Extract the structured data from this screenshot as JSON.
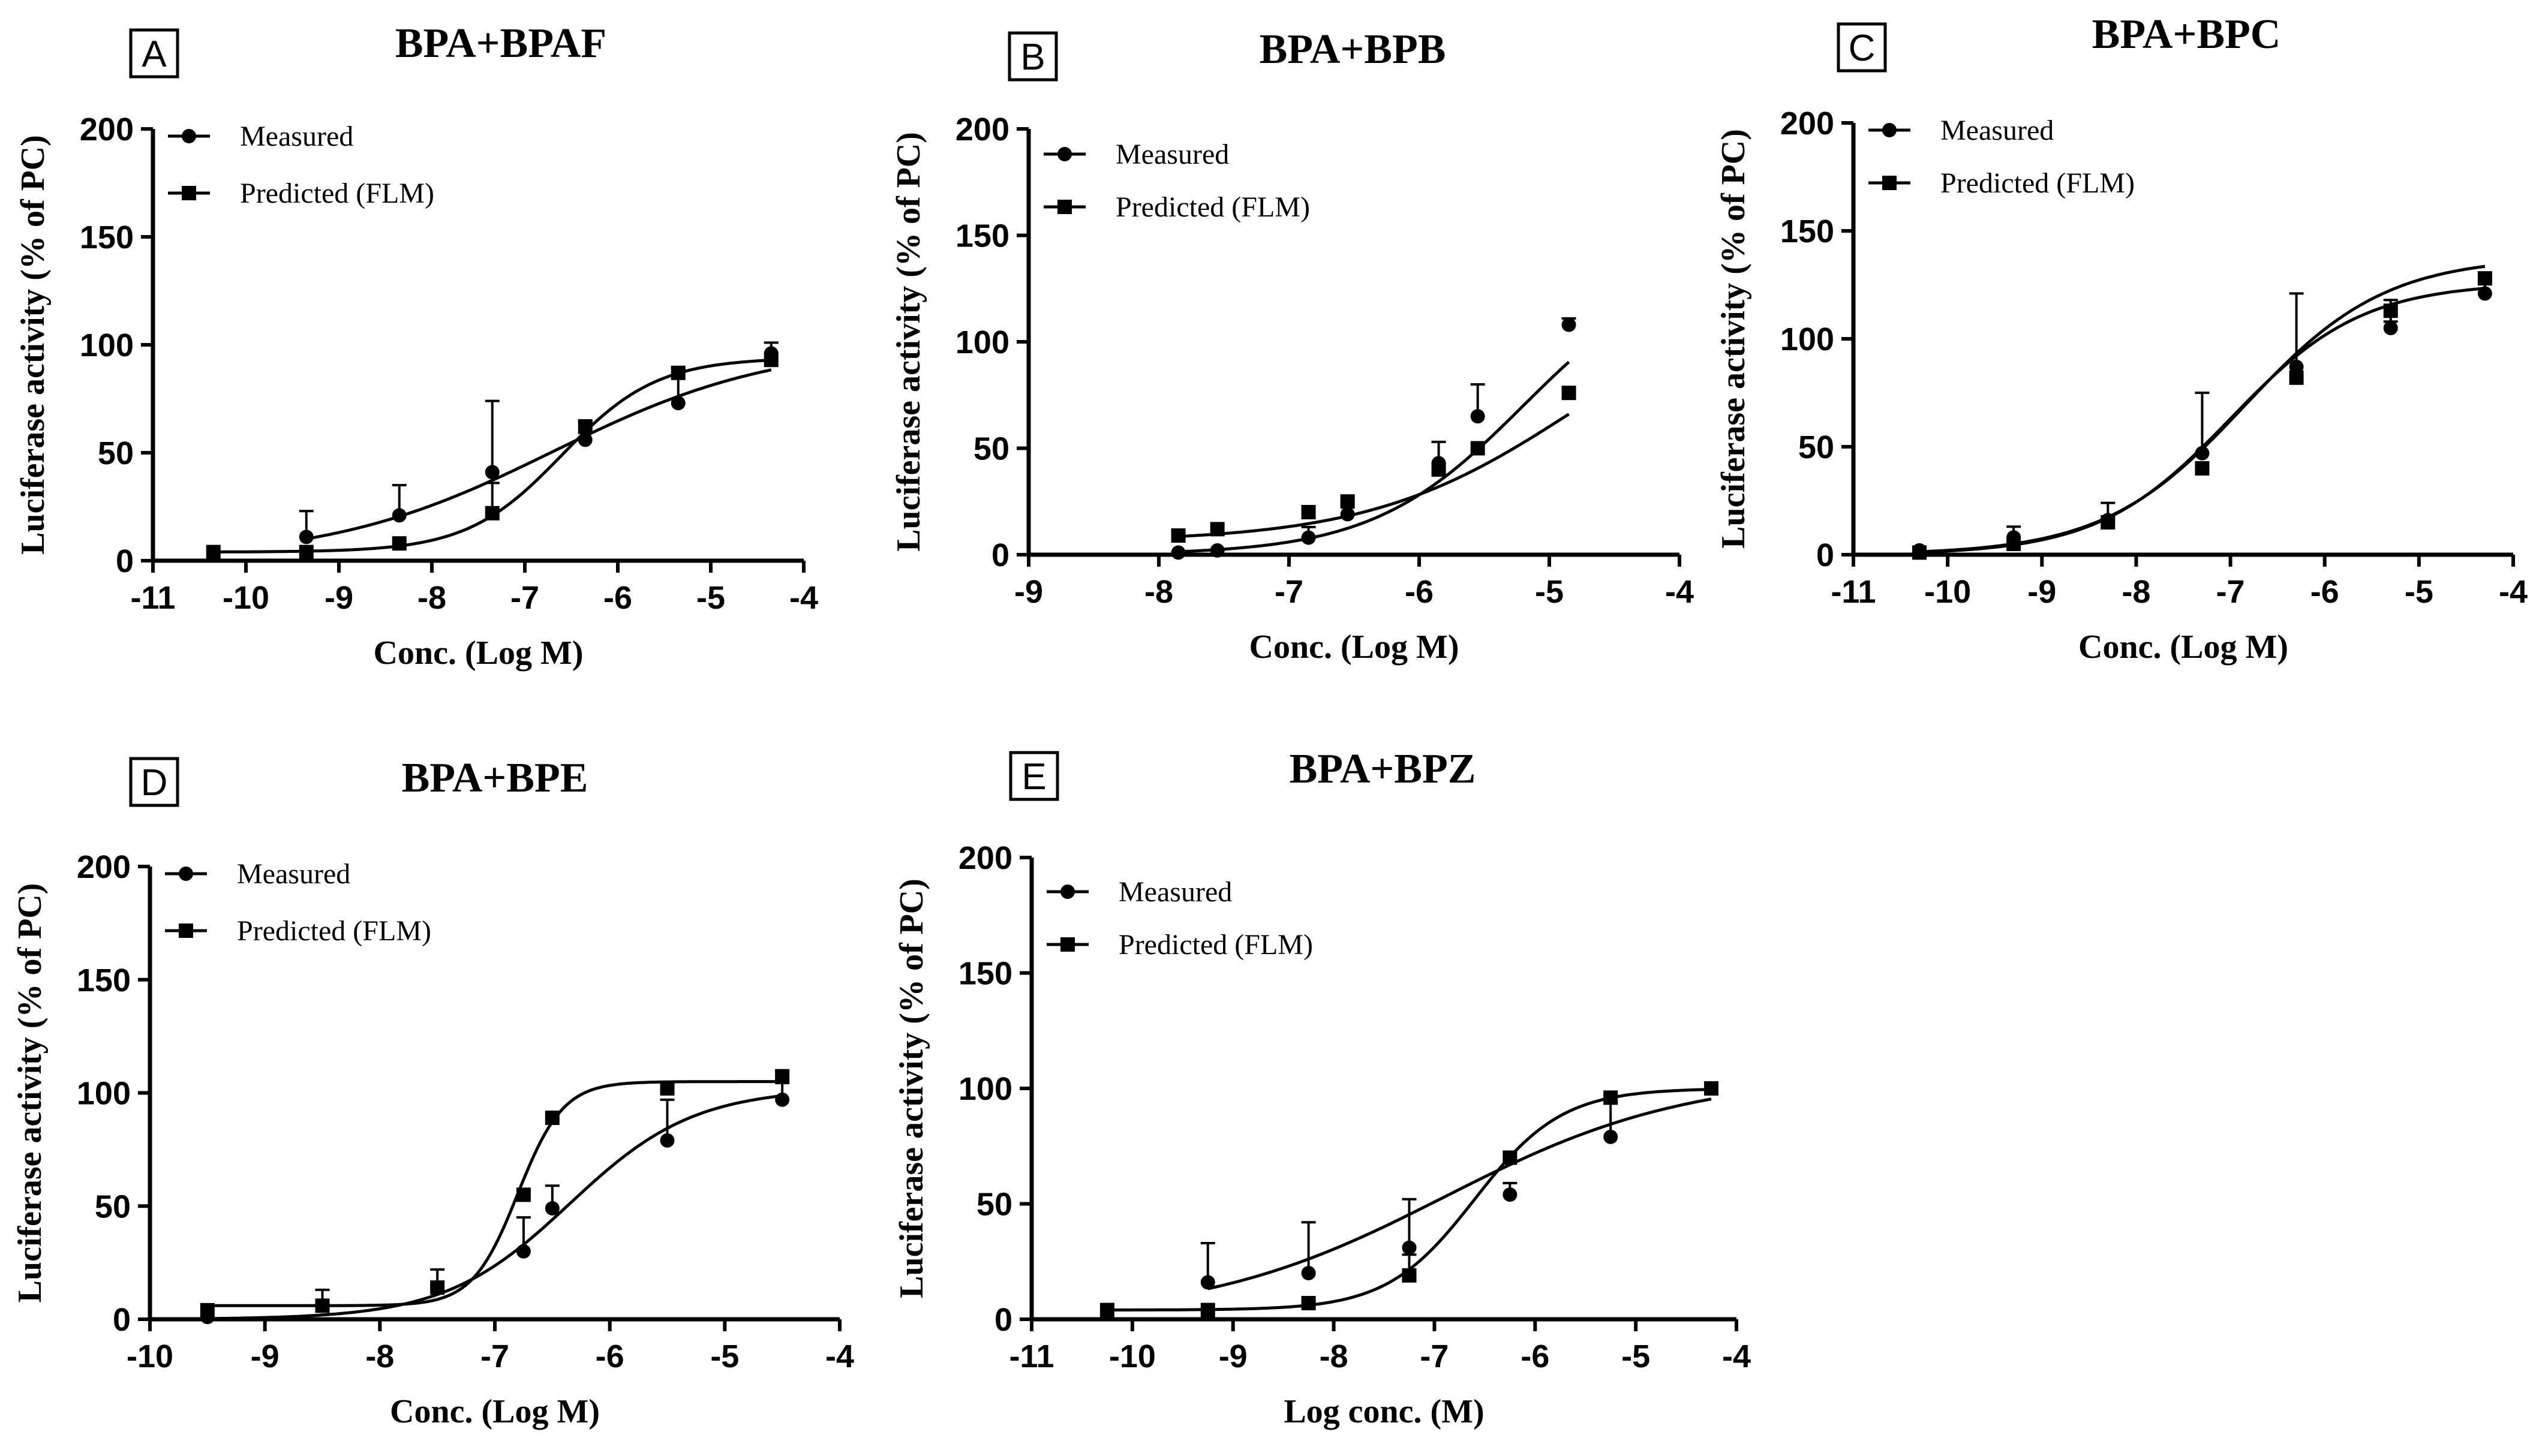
{
  "chart_data": [
    {
      "panel": "A",
      "type": "line",
      "title": "BPA+BPAF",
      "xlabel": "Conc. (Log M)",
      "ylabel": "Luciferase activity (% of PC)",
      "xlim": [
        -11,
        -4
      ],
      "ylim": [
        0,
        200
      ],
      "xticks": [
        -11,
        -10,
        -9,
        -8,
        -7,
        -6,
        -5,
        -4
      ],
      "yticks": [
        0,
        50,
        100,
        150,
        200
      ],
      "legend": "top-left",
      "grid": false,
      "series": [
        {
          "name": "Measured",
          "marker": "circle",
          "x": [
            -9.35,
            -8.35,
            -7.35,
            -6.35,
            -5.35,
            -4.35
          ],
          "y": [
            11,
            21,
            41,
            56,
            73,
            96
          ],
          "err": [
            12,
            14,
            33,
            9,
            16,
            5
          ],
          "fit": {
            "bottom": 0,
            "top": 101,
            "ec50": -6.7,
            "hill": 0.36
          }
        },
        {
          "name": "Predicted (FLM)",
          "marker": "square",
          "x": [
            -10.35,
            -9.35,
            -8.35,
            -7.35,
            -6.35,
            -5.35,
            -4.35
          ],
          "y": [
            4,
            4,
            8,
            22,
            62,
            87,
            93
          ],
          "err": [
            0,
            0,
            0,
            14,
            0,
            0,
            0
          ],
          "fit": {
            "bottom": 4,
            "top": 94,
            "ec50": -6.6,
            "hill": 0.85
          }
        }
      ]
    },
    {
      "panel": "B",
      "type": "line",
      "title": "BPA+BPB",
      "xlabel": "Conc. (Log M)",
      "ylabel": "Luciferase activity (% of PC)",
      "xlim": [
        -9,
        -4
      ],
      "ylim": [
        0,
        200
      ],
      "xticks": [
        -9,
        -8,
        -7,
        -6,
        -5,
        -4
      ],
      "yticks": [
        0,
        50,
        100,
        150,
        200
      ],
      "legend": "top-left",
      "grid": false,
      "series": [
        {
          "name": "Measured",
          "marker": "circle",
          "x": [
            -7.85,
            -7.55,
            -6.85,
            -6.55,
            -5.85,
            -5.55,
            -4.85
          ],
          "y": [
            1,
            2,
            8,
            19,
            43,
            65,
            108
          ],
          "err": [
            0,
            0,
            5,
            5,
            10,
            15,
            3
          ],
          "fit": {
            "bottom": 0,
            "top": 140,
            "ec50": -5.2,
            "hill": 0.75
          }
        },
        {
          "name": "Predicted (FLM)",
          "marker": "square",
          "x": [
            -7.85,
            -7.55,
            -6.85,
            -6.55,
            -5.85,
            -5.55,
            -4.85
          ],
          "y": [
            9,
            12,
            20,
            25,
            40,
            50,
            76
          ],
          "err": [
            0,
            0,
            0,
            0,
            0,
            0,
            0
          ],
          "fit": {
            "bottom": 6,
            "top": 130,
            "ec50": -4.8,
            "hill": 0.55
          }
        }
      ]
    },
    {
      "panel": "C",
      "type": "line",
      "title": "BPA+BPC",
      "xlabel": "Conc. (Log M)",
      "ylabel": "Luciferase activity (% of PC)",
      "xlim": [
        -11,
        -4
      ],
      "ylim": [
        0,
        200
      ],
      "xticks": [
        -11,
        -10,
        -9,
        -8,
        -7,
        -6,
        -5,
        -4
      ],
      "yticks": [
        0,
        50,
        100,
        150,
        200
      ],
      "legend": "top-left",
      "grid": false,
      "series": [
        {
          "name": "Measured",
          "marker": "circle",
          "x": [
            -10.3,
            -9.3,
            -8.3,
            -7.3,
            -6.3,
            -5.3,
            -4.3
          ],
          "y": [
            2,
            8,
            16,
            47,
            87,
            105,
            121
          ],
          "err": [
            1,
            5,
            8,
            28,
            34,
            13,
            6
          ],
          "fit": {
            "bottom": 0,
            "top": 126,
            "ec50": -7.0,
            "hill": 0.62
          }
        },
        {
          "name": "Predicted (FLM)",
          "marker": "square",
          "x": [
            -10.3,
            -9.3,
            -8.3,
            -7.3,
            -6.3,
            -5.3,
            -4.3
          ],
          "y": [
            1,
            5,
            15,
            40,
            82,
            113,
            128
          ],
          "err": [
            0,
            0,
            0,
            0,
            0,
            5,
            0
          ],
          "fit": {
            "bottom": 0,
            "top": 138,
            "ec50": -6.85,
            "hill": 0.58
          }
        }
      ]
    },
    {
      "panel": "D",
      "type": "line",
      "title": "BPA+BPE",
      "xlabel": "Conc. (Log M)",
      "ylabel": "Luciferase activity (% of PC)",
      "xlim": [
        -10,
        -4
      ],
      "ylim": [
        0,
        200
      ],
      "xticks": [
        -10,
        -9,
        -8,
        -7,
        -6,
        -5,
        -4
      ],
      "yticks": [
        0,
        50,
        100,
        150,
        200
      ],
      "legend": "top-left",
      "grid": false,
      "series": [
        {
          "name": "Measured",
          "marker": "circle",
          "x": [
            -9.5,
            -8.5,
            -7.5,
            -6.75,
            -6.5,
            -5.5,
            -4.5
          ],
          "y": [
            1,
            6,
            14,
            30,
            49,
            79,
            97
          ],
          "err": [
            0,
            7,
            8,
            15,
            10,
            18,
            13
          ],
          "fit": {
            "bottom": 0,
            "top": 102,
            "ec50": -6.35,
            "hill": 0.8
          }
        },
        {
          "name": "Predicted (FLM)",
          "marker": "square",
          "x": [
            -9.5,
            -8.5,
            -7.5,
            -6.75,
            -6.5,
            -5.5,
            -4.5
          ],
          "y": [
            4,
            6,
            14,
            55,
            89,
            102,
            107
          ],
          "err": [
            0,
            0,
            0,
            0,
            0,
            0,
            0
          ],
          "fit": {
            "bottom": 6,
            "top": 105,
            "ec50": -6.8,
            "hill": 2.2
          }
        }
      ]
    },
    {
      "panel": "E",
      "type": "line",
      "title": "BPA+BPZ",
      "xlabel": "Log conc. (M)",
      "ylabel": "Luciferase activity (% of PC)",
      "xlim": [
        -11,
        -4
      ],
      "ylim": [
        0,
        200
      ],
      "xticks": [
        -11,
        -10,
        -9,
        -8,
        -7,
        -6,
        -5,
        -4
      ],
      "yticks": [
        0,
        50,
        100,
        150,
        200
      ],
      "legend": "top-left",
      "grid": false,
      "series": [
        {
          "name": "Measured",
          "marker": "circle",
          "x": [
            -9.25,
            -8.25,
            -7.25,
            -6.25,
            -5.25,
            -4.25
          ],
          "y": [
            16,
            20,
            31,
            54,
            79,
            100
          ],
          "err": [
            17,
            22,
            21,
            5,
            18,
            0
          ],
          "fit": {
            "bottom": 0,
            "top": 106,
            "ec50": -6.9,
            "hill": 0.36
          }
        },
        {
          "name": "Predicted (FLM)",
          "marker": "square",
          "x": [
            -10.25,
            -9.25,
            -8.25,
            -7.25,
            -6.25,
            -5.25,
            -4.25
          ],
          "y": [
            4,
            4,
            7,
            19,
            70,
            96,
            100
          ],
          "err": [
            0,
            0,
            0,
            9,
            0,
            0,
            0
          ],
          "fit": {
            "bottom": 4,
            "top": 100,
            "ec50": -6.6,
            "hill": 1.0
          }
        }
      ]
    }
  ]
}
